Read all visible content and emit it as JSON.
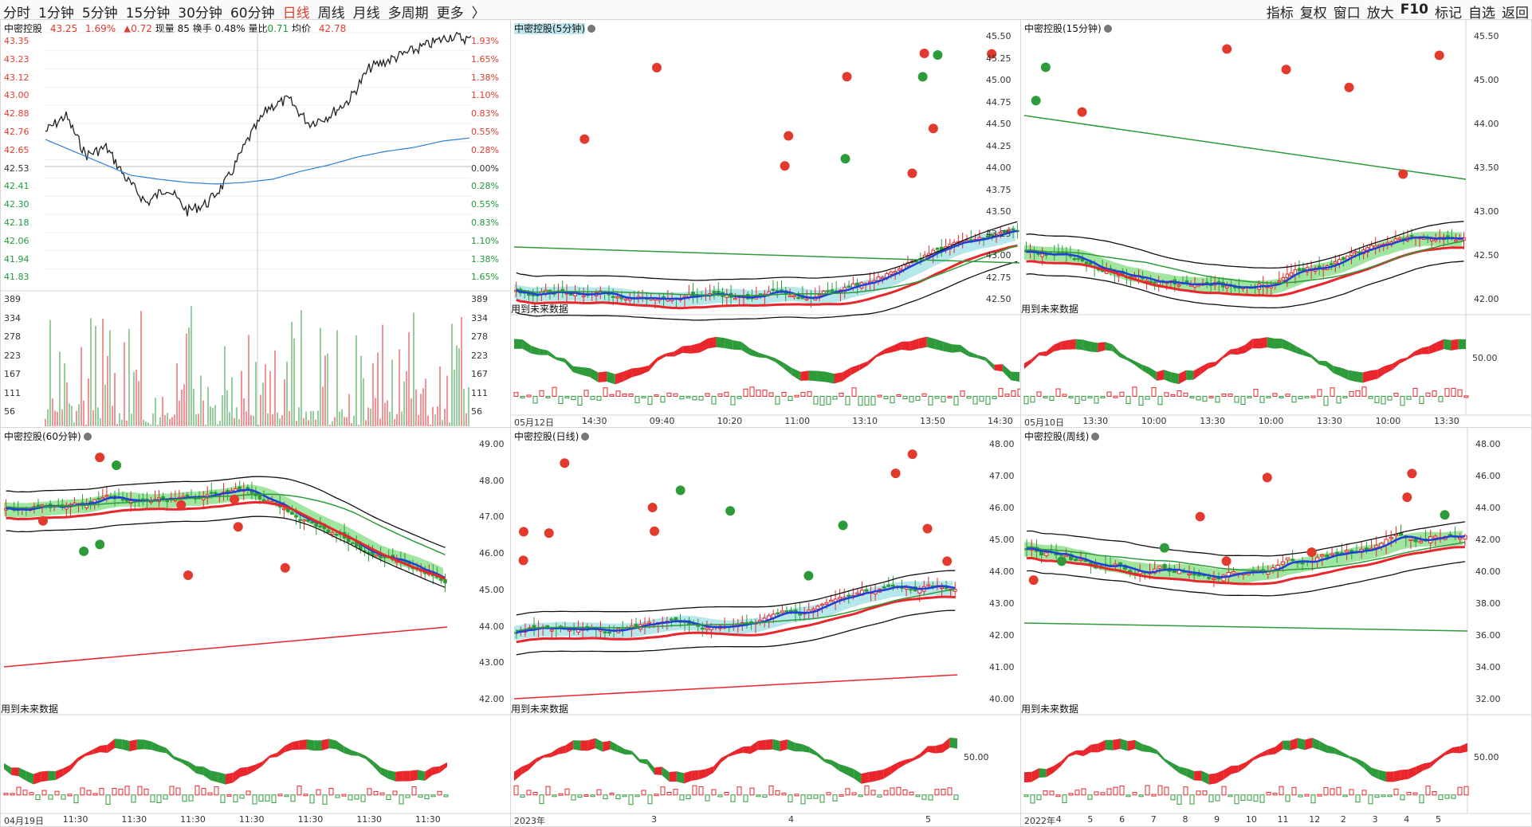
{
  "top_tabs": [
    {
      "label": "分时",
      "active": false
    },
    {
      "label": "1分钟",
      "active": false
    },
    {
      "label": "5分钟",
      "active": false
    },
    {
      "label": "15分钟",
      "active": false
    },
    {
      "label": "30分钟",
      "active": false
    },
    {
      "label": "60分钟",
      "active": false
    },
    {
      "label": "日线",
      "active": true
    },
    {
      "label": "周线",
      "active": false
    },
    {
      "label": "月线",
      "active": false
    },
    {
      "label": "多周期",
      "active": false
    },
    {
      "label": "更多",
      "active": false
    },
    {
      "label": "〉",
      "active": false
    }
  ],
  "top_tools": [
    "指标",
    "复权",
    "窗口",
    "放大",
    "F10",
    "标记",
    "自选",
    "返回"
  ],
  "colors": {
    "up": "#e8262b",
    "down": "#2e9b3a",
    "ma_blue": "#1f3fd8",
    "cloud_cyan": "#a9e3e8",
    "cloud_green": "#8fe08f",
    "avg_line": "#2f7fd6"
  },
  "intraday": {
    "title": "中密控股",
    "price": "43.25",
    "pct": "1.69%",
    "change": "▲0.72",
    "volume": "现量 85",
    "turnover": "换手 0.48%",
    "vol_ratio_label": "量比",
    "vol_ratio": "0.71",
    "avg_label": "均价",
    "avg": "42.78",
    "prices_red": [
      "43.35",
      "43.23",
      "43.12",
      "43.00",
      "42.88",
      "42.76",
      "42.65"
    ],
    "price_mid": "42.53",
    "prices_green": [
      "42.41",
      "42.30",
      "42.18",
      "42.06",
      "41.94",
      "41.83"
    ],
    "pcts_red": [
      "1.93%",
      "1.65%",
      "1.38%",
      "1.10%",
      "0.83%",
      "0.55%",
      "0.28%"
    ],
    "pct_mid": "0.00%",
    "pcts_green": [
      "0.28%",
      "0.55%",
      "0.83%",
      "1.10%",
      "1.38%",
      "1.65%"
    ],
    "vol_labels": [
      "389",
      "334",
      "278",
      "223",
      "167",
      "111",
      "56"
    ]
  },
  "panels": [
    {
      "id": "m5",
      "title": "中密控股(5分钟)",
      "future": "用到未来数据",
      "yaxis": [],
      "sub_y": "",
      "xlabels": [
        "05月12日",
        "14:30",
        "09:40",
        "10:20",
        "11:00",
        "13:10",
        "13:50",
        "14:30"
      ]
    },
    {
      "id": "m15",
      "title": "中密控股(15分钟)",
      "future": "用到未来数据",
      "yaxis": [
        "45.50",
        "45.25",
        "45.00",
        "44.75",
        "44.50",
        "44.25",
        "44.00",
        "43.75",
        "43.50",
        "43.25",
        "43.00",
        "42.75",
        "42.50"
      ],
      "yaxis_right": [
        "45.50",
        "45.00",
        "44.00",
        "43.50",
        "43.00",
        "42.50",
        "42.00"
      ],
      "sub_y": "50.00",
      "xlabels": [
        "05月10日",
        "13:30",
        "10:00",
        "13:30",
        "10:00",
        "13:30",
        "10:00",
        "13:30"
      ]
    },
    {
      "id": "m60",
      "title": "中密控股(60分钟)",
      "future": "用到未来数据",
      "yaxis": [],
      "sub_y": "",
      "xlabels": [
        "04月19日",
        "11:30",
        "11:30",
        "11:30",
        "11:30",
        "11:30",
        "11:30",
        "11:30"
      ]
    },
    {
      "id": "day",
      "title": "中密控股(日线)",
      "future": "用到未来数据",
      "yaxis": [
        "49.00",
        "48.00",
        "47.00",
        "46.00",
        "45.00",
        "44.00",
        "43.00",
        "42.00"
      ],
      "yaxis_right": [],
      "sub_y": "50.00",
      "xlabels": [
        "2023年",
        "3",
        "4",
        "5"
      ]
    },
    {
      "id": "week",
      "title": "中密控股(周线)",
      "future": "用到未来数据",
      "yaxis": [
        "48.00",
        "47.00",
        "46.00",
        "45.00",
        "44.00",
        "43.00",
        "42.00",
        "41.00",
        "40.00"
      ],
      "yaxis_right": [
        "48.00",
        "46.00",
        "44.00",
        "42.00",
        "40.00",
        "38.00",
        "36.00",
        "34.00",
        "32.00"
      ],
      "sub_y": "50.00",
      "xlabels": [
        "2022年",
        "4",
        "5",
        "6",
        "7",
        "8",
        "9",
        "10",
        "11",
        "12",
        "2",
        "3",
        "4",
        "5"
      ]
    }
  ]
}
